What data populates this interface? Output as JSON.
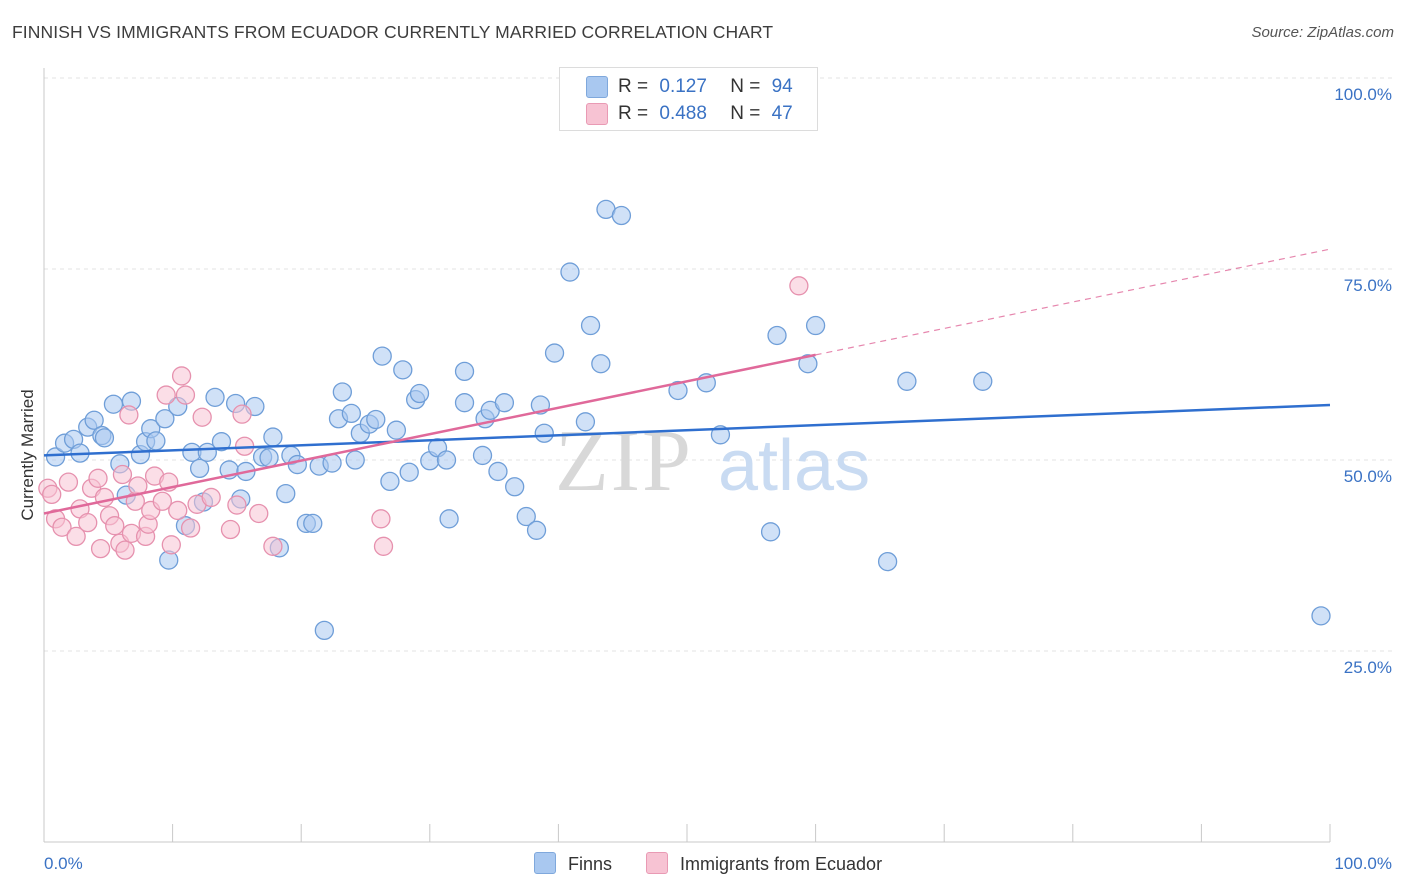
{
  "title": "FINNISH VS IMMIGRANTS FROM ECUADOR CURRENTLY MARRIED CORRELATION CHART",
  "source": "Source: ZipAtlas.com",
  "watermark": {
    "zip": "ZIP",
    "atlas": "atlas"
  },
  "legend_top": {
    "rows": [
      {
        "r_label": "R =",
        "r_value": "0.127",
        "n_label": "N =",
        "n_value": "94",
        "color": "#a9c8f0",
        "border": "#7fa8dc"
      },
      {
        "r_label": "R =",
        "r_value": "0.488",
        "n_label": "N =",
        "n_value": "47",
        "color": "#f7c3d3",
        "border": "#e99ab4"
      }
    ]
  },
  "legend_bottom": [
    {
      "label": "Finns",
      "color": "#a9c8f0",
      "border": "#7fa8dc"
    },
    {
      "label": "Immigrants from Ecuador",
      "color": "#f7c3d3",
      "border": "#e99ab4"
    }
  ],
  "chart_data": {
    "type": "scatter",
    "ylabel": "Currently Married",
    "xlabel": "",
    "xlim": [
      0,
      100
    ],
    "ylim": [
      0,
      100
    ],
    "x_tick_labels": {
      "left": "0.0%",
      "right": "100.0%"
    },
    "y_ticks": [
      {
        "value": 100,
        "label": "100.0%"
      },
      {
        "value": 75,
        "label": "75.0%"
      },
      {
        "value": 50,
        "label": "50.0%"
      },
      {
        "value": 25,
        "label": "25.0%"
      }
    ],
    "grid": true,
    "series": [
      {
        "name": "Finns",
        "color": "#a9c8f0",
        "stroke": "#6f9ed8",
        "line_color": "#2f6fcf",
        "trend": {
          "x0": 0,
          "y0": 50.6,
          "x1": 100,
          "y1": 57.2,
          "dashed_from": null
        },
        "points": [
          [
            0.9,
            50.4
          ],
          [
            1.6,
            52.2
          ],
          [
            2.3,
            52.7
          ],
          [
            2.8,
            50.9
          ],
          [
            3.4,
            54.3
          ],
          [
            3.9,
            55.2
          ],
          [
            4.5,
            53.2
          ],
          [
            4.7,
            52.9
          ],
          [
            5.4,
            57.3
          ],
          [
            5.9,
            49.5
          ],
          [
            6.4,
            45.4
          ],
          [
            6.8,
            57.7
          ],
          [
            7.5,
            50.7
          ],
          [
            7.9,
            52.4
          ],
          [
            8.3,
            54.1
          ],
          [
            8.7,
            52.5
          ],
          [
            9.4,
            55.4
          ],
          [
            9.7,
            36.9
          ],
          [
            10.4,
            57.0
          ],
          [
            11.0,
            41.4
          ],
          [
            11.5,
            51.0
          ],
          [
            12.1,
            48.9
          ],
          [
            12.4,
            44.5
          ],
          [
            12.7,
            51.0
          ],
          [
            13.3,
            58.2
          ],
          [
            13.8,
            52.4
          ],
          [
            14.4,
            48.7
          ],
          [
            14.9,
            57.4
          ],
          [
            15.3,
            44.9
          ],
          [
            15.7,
            48.5
          ],
          [
            16.4,
            57.0
          ],
          [
            17.0,
            50.4
          ],
          [
            17.5,
            50.3
          ],
          [
            17.8,
            53.0
          ],
          [
            18.3,
            38.5
          ],
          [
            18.8,
            45.6
          ],
          [
            19.2,
            50.6
          ],
          [
            19.7,
            49.4
          ],
          [
            20.4,
            41.7
          ],
          [
            20.9,
            41.7
          ],
          [
            21.4,
            49.2
          ],
          [
            21.8,
            27.7
          ],
          [
            22.4,
            49.6
          ],
          [
            22.9,
            55.4
          ],
          [
            23.2,
            58.9
          ],
          [
            23.9,
            56.1
          ],
          [
            24.2,
            50.0
          ],
          [
            24.6,
            53.5
          ],
          [
            25.3,
            54.7
          ],
          [
            25.8,
            55.3
          ],
          [
            26.3,
            63.6
          ],
          [
            26.9,
            47.2
          ],
          [
            27.4,
            53.9
          ],
          [
            27.9,
            61.8
          ],
          [
            28.4,
            48.4
          ],
          [
            28.9,
            57.9
          ],
          [
            29.2,
            58.7
          ],
          [
            30.0,
            49.9
          ],
          [
            30.6,
            51.6
          ],
          [
            31.3,
            50.0
          ],
          [
            31.5,
            42.3
          ],
          [
            32.7,
            61.6
          ],
          [
            32.7,
            57.5
          ],
          [
            34.1,
            50.6
          ],
          [
            34.3,
            55.4
          ],
          [
            34.7,
            56.5
          ],
          [
            35.3,
            48.5
          ],
          [
            35.8,
            57.5
          ],
          [
            36.6,
            46.5
          ],
          [
            37.5,
            42.6
          ],
          [
            38.3,
            40.8
          ],
          [
            38.6,
            57.2
          ],
          [
            38.9,
            53.5
          ],
          [
            39.7,
            64.0
          ],
          [
            40.9,
            74.6
          ],
          [
            42.1,
            55.0
          ],
          [
            42.5,
            67.6
          ],
          [
            43.3,
            62.6
          ],
          [
            43.7,
            82.8
          ],
          [
            44.9,
            82.0
          ],
          [
            49.3,
            59.1
          ],
          [
            51.5,
            60.1
          ],
          [
            52.6,
            53.3
          ],
          [
            56.5,
            40.6
          ],
          [
            57.0,
            66.3
          ],
          [
            59.4,
            62.6
          ],
          [
            60.0,
            67.6
          ],
          [
            65.6,
            36.7
          ],
          [
            67.1,
            60.3
          ],
          [
            73.0,
            60.3
          ],
          [
            99.3,
            29.6
          ]
        ]
      },
      {
        "name": "Immigrants from Ecuador",
        "color": "#f7c3d3",
        "stroke": "#e691ae",
        "line_color": "#e0699a",
        "trend": {
          "x0": 0,
          "y0": 43.0,
          "x1": 100,
          "y1": 77.6,
          "dashed_from": 60
        },
        "points": [
          [
            0.3,
            46.3
          ],
          [
            0.6,
            45.5
          ],
          [
            0.9,
            42.3
          ],
          [
            1.4,
            41.2
          ],
          [
            1.9,
            47.1
          ],
          [
            2.5,
            40.0
          ],
          [
            2.8,
            43.6
          ],
          [
            3.4,
            41.8
          ],
          [
            3.7,
            46.3
          ],
          [
            4.2,
            47.6
          ],
          [
            4.4,
            38.4
          ],
          [
            4.7,
            45.1
          ],
          [
            5.1,
            42.7
          ],
          [
            5.5,
            41.4
          ],
          [
            5.9,
            39.1
          ],
          [
            6.1,
            48.1
          ],
          [
            6.3,
            38.2
          ],
          [
            6.6,
            55.9
          ],
          [
            6.8,
            40.4
          ],
          [
            7.1,
            44.6
          ],
          [
            7.3,
            46.6
          ],
          [
            7.9,
            40.0
          ],
          [
            8.1,
            41.6
          ],
          [
            8.3,
            43.4
          ],
          [
            8.6,
            47.9
          ],
          [
            9.2,
            44.6
          ],
          [
            9.5,
            58.5
          ],
          [
            9.7,
            47.1
          ],
          [
            9.9,
            38.9
          ],
          [
            10.4,
            43.4
          ],
          [
            10.7,
            61.0
          ],
          [
            11.0,
            58.5
          ],
          [
            11.4,
            41.1
          ],
          [
            11.9,
            44.2
          ],
          [
            12.3,
            55.6
          ],
          [
            13.0,
            45.1
          ],
          [
            14.5,
            40.9
          ],
          [
            15.0,
            44.1
          ],
          [
            15.4,
            56.0
          ],
          [
            15.6,
            51.8
          ],
          [
            16.7,
            43.0
          ],
          [
            17.8,
            38.7
          ],
          [
            26.2,
            42.3
          ],
          [
            26.4,
            38.7
          ],
          [
            58.7,
            72.8
          ]
        ]
      }
    ]
  }
}
